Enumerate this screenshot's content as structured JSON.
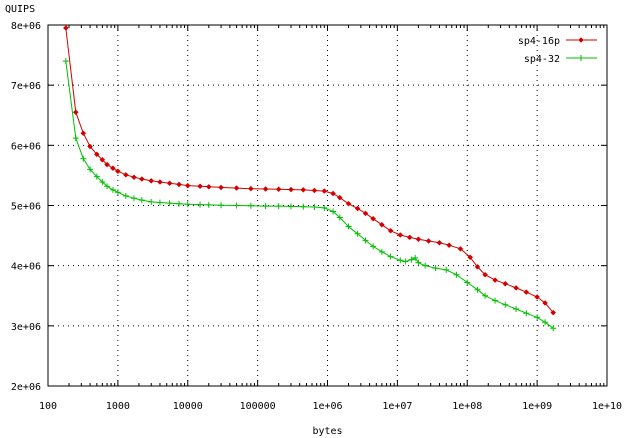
{
  "chart_data": {
    "type": "line",
    "title": "",
    "xlabel": "bytes",
    "ylabel": "QUIPS",
    "xscale": "log",
    "xlim": [
      100,
      10000000000
    ],
    "ylim": [
      2000000,
      8000000
    ],
    "grid": true,
    "legend_position": "top-right",
    "x_tick_labels": [
      "100",
      "1000",
      "10000",
      "100000",
      "1e+06",
      "1e+07",
      "1e+08",
      "1e+09",
      "1e+10"
    ],
    "y_tick_labels": [
      "2e+06",
      "3e+06",
      "4e+06",
      "5e+06",
      "6e+06",
      "7e+06",
      "8e+06"
    ],
    "series": [
      {
        "name": "sp4-16p",
        "color": "#d40000",
        "marker": "diamond",
        "points": [
          [
            180,
            7950000
          ],
          [
            250,
            6550000
          ],
          [
            320,
            6200000
          ],
          [
            400,
            5980000
          ],
          [
            500,
            5850000
          ],
          [
            600,
            5760000
          ],
          [
            700,
            5680000
          ],
          [
            850,
            5620000
          ],
          [
            1000,
            5570000
          ],
          [
            1300,
            5510000
          ],
          [
            1700,
            5470000
          ],
          [
            2200,
            5440000
          ],
          [
            3000,
            5410000
          ],
          [
            4000,
            5390000
          ],
          [
            5500,
            5370000
          ],
          [
            7500,
            5350000
          ],
          [
            10000,
            5330000
          ],
          [
            15000,
            5320000
          ],
          [
            20000,
            5310000
          ],
          [
            30000,
            5300000
          ],
          [
            50000,
            5290000
          ],
          [
            80000,
            5280000
          ],
          [
            130000,
            5275000
          ],
          [
            200000,
            5270000
          ],
          [
            300000,
            5265000
          ],
          [
            450000,
            5260000
          ],
          [
            650000,
            5250000
          ],
          [
            900000,
            5240000
          ],
          [
            1200000,
            5200000
          ],
          [
            1500000,
            5130000
          ],
          [
            2000000,
            5030000
          ],
          [
            2700000,
            4950000
          ],
          [
            3500000,
            4870000
          ],
          [
            4500000,
            4780000
          ],
          [
            6000000,
            4680000
          ],
          [
            8000000,
            4580000
          ],
          [
            11000000,
            4510000
          ],
          [
            15000000,
            4470000
          ],
          [
            20000000,
            4440000
          ],
          [
            28000000,
            4410000
          ],
          [
            40000000,
            4380000
          ],
          [
            55000000,
            4340000
          ],
          [
            80000000,
            4280000
          ],
          [
            110000000,
            4140000
          ],
          [
            140000000,
            3980000
          ],
          [
            180000000,
            3850000
          ],
          [
            250000000,
            3760000
          ],
          [
            350000000,
            3700000
          ],
          [
            500000000,
            3630000
          ],
          [
            700000000,
            3560000
          ],
          [
            1000000000,
            3480000
          ],
          [
            1300000000,
            3380000
          ],
          [
            1700000000,
            3220000
          ]
        ]
      },
      {
        "name": "sp4-32",
        "color": "#00c000",
        "marker": "plus",
        "points": [
          [
            180,
            7400000
          ],
          [
            250,
            6120000
          ],
          [
            320,
            5780000
          ],
          [
            400,
            5600000
          ],
          [
            500,
            5480000
          ],
          [
            600,
            5390000
          ],
          [
            700,
            5320000
          ],
          [
            850,
            5260000
          ],
          [
            1000,
            5220000
          ],
          [
            1300,
            5160000
          ],
          [
            1700,
            5120000
          ],
          [
            2200,
            5090000
          ],
          [
            3000,
            5060000
          ],
          [
            4000,
            5050000
          ],
          [
            5500,
            5040000
          ],
          [
            7500,
            5030000
          ],
          [
            10000,
            5020000
          ],
          [
            15000,
            5015000
          ],
          [
            20000,
            5010000
          ],
          [
            30000,
            5005000
          ],
          [
            50000,
            5000000
          ],
          [
            80000,
            4995000
          ],
          [
            130000,
            4990000
          ],
          [
            200000,
            4990000
          ],
          [
            300000,
            4985000
          ],
          [
            450000,
            4980000
          ],
          [
            650000,
            4975000
          ],
          [
            900000,
            4960000
          ],
          [
            1200000,
            4900000
          ],
          [
            1500000,
            4800000
          ],
          [
            2000000,
            4650000
          ],
          [
            2700000,
            4530000
          ],
          [
            3500000,
            4420000
          ],
          [
            4500000,
            4320000
          ],
          [
            6000000,
            4230000
          ],
          [
            8000000,
            4150000
          ],
          [
            11000000,
            4090000
          ],
          [
            13000000,
            4070000
          ],
          [
            16000000,
            4100000
          ],
          [
            18000000,
            4130000
          ],
          [
            20000000,
            4050000
          ],
          [
            25000000,
            4000000
          ],
          [
            35000000,
            3960000
          ],
          [
            50000000,
            3930000
          ],
          [
            70000000,
            3850000
          ],
          [
            100000000,
            3720000
          ],
          [
            140000000,
            3600000
          ],
          [
            180000000,
            3500000
          ],
          [
            250000000,
            3420000
          ],
          [
            350000000,
            3350000
          ],
          [
            500000000,
            3280000
          ],
          [
            700000000,
            3210000
          ],
          [
            1000000000,
            3140000
          ],
          [
            1300000000,
            3060000
          ],
          [
            1700000000,
            2960000
          ]
        ]
      }
    ]
  }
}
